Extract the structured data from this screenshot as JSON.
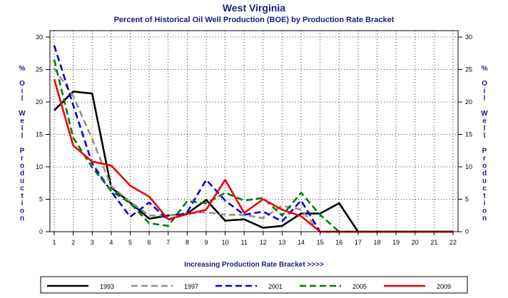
{
  "chart_data": {
    "type": "line",
    "title": "West Virginia",
    "subtitle": "Percent of Historical Oil Well Production (BOE) by Production Rate Bracket",
    "xlabel": "Increasing Production Rate Bracket >>>>",
    "ylabel": "% Oil Well Production",
    "ylabel_right": "% Oil Well Production",
    "x": [
      1,
      2,
      3,
      4,
      5,
      6,
      7,
      8,
      9,
      10,
      11,
      12,
      13,
      14,
      15,
      16,
      17,
      18,
      19,
      20,
      21,
      22
    ],
    "xlim": [
      1,
      22
    ],
    "ylim": [
      0,
      30
    ],
    "yticks": [
      0,
      5,
      10,
      15,
      20,
      25,
      30
    ],
    "grid": true,
    "legend_position": "bottom",
    "series": [
      {
        "name": "1993",
        "color": "#000000",
        "dash": "solid",
        "values": [
          18.7,
          21.6,
          21.3,
          6.8,
          4.5,
          2.0,
          2.5,
          2.8,
          4.9,
          1.7,
          1.9,
          0.6,
          0.9,
          2.8,
          2.8,
          4.4,
          0,
          0,
          0,
          0,
          0,
          0
        ]
      },
      {
        "name": "1997",
        "color": "#909090",
        "dash": "dashed",
        "values": [
          25.2,
          20.9,
          14.3,
          7.0,
          4.6,
          2.5,
          2.5,
          2.8,
          3.0,
          2.6,
          2.6,
          2.1,
          4.0,
          3.4,
          0,
          0,
          0,
          0,
          0,
          0,
          0,
          0
        ]
      },
      {
        "name": "2001",
        "color": "#0000dd",
        "dash": "dashed",
        "values": [
          28.7,
          19.5,
          10.5,
          6.2,
          2.3,
          4.5,
          1.8,
          3.0,
          8.0,
          4.8,
          2.6,
          3.1,
          1.6,
          4.8,
          0,
          0,
          0,
          0,
          0,
          0,
          0,
          0
        ]
      },
      {
        "name": "2005",
        "color": "#007a00",
        "dash": "dashed",
        "values": [
          26.5,
          14.5,
          9.9,
          6.3,
          4.4,
          1.3,
          0.9,
          4.7,
          4.4,
          6.0,
          4.8,
          5.2,
          2.5,
          6.0,
          2.6,
          0,
          0,
          0,
          0,
          0,
          0,
          0
        ]
      },
      {
        "name": "2009",
        "color": "#ee0000",
        "dash": "solid",
        "values": [
          23.5,
          13.3,
          10.8,
          10.2,
          7.1,
          5.4,
          1.9,
          2.7,
          3.4,
          8.0,
          2.9,
          5.0,
          3.4,
          2.4,
          0,
          0,
          0,
          0,
          0,
          0,
          0,
          0
        ]
      }
    ]
  }
}
